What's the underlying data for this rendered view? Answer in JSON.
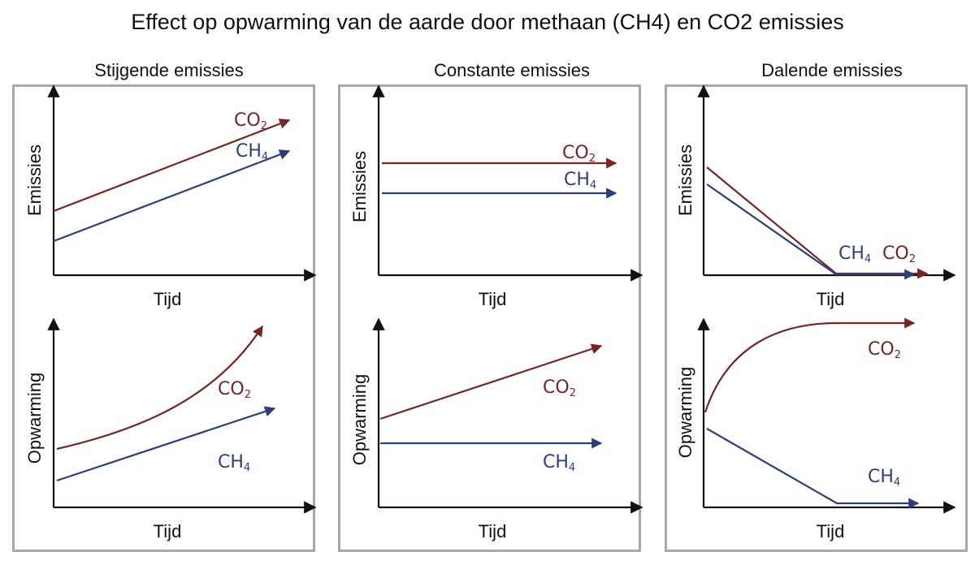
{
  "title": "Effect op opwarming van de aarde door methaan (CH4) en CO2 emissies",
  "colors": {
    "co2": "#7b2323",
    "ch4": "#2c3e7f",
    "panel_border": "#a7a7a7"
  },
  "labels": {
    "co2": "CO",
    "ch4": "CH",
    "co2_sub": "2",
    "ch4_sub": "4"
  },
  "columns": [
    {
      "title": "Stijgende emissies",
      "emissions": {
        "ylabel": "Emissies",
        "xlabel": "Tijd",
        "co2_trend": "stijgend",
        "ch4_trend": "stijgend"
      },
      "warming": {
        "ylabel": "Opwarming",
        "xlabel": "Tijd",
        "co2_trend": "versneld stijgend",
        "ch4_trend": "stijgend"
      }
    },
    {
      "title": "Constante emissies",
      "emissions": {
        "ylabel": "Emissies",
        "xlabel": "Tijd",
        "co2_trend": "constant",
        "ch4_trend": "constant"
      },
      "warming": {
        "ylabel": "Opwarming",
        "xlabel": "Tijd",
        "co2_trend": "stijgend",
        "ch4_trend": "constant"
      }
    },
    {
      "title": "Dalende emissies",
      "emissions": {
        "ylabel": "Emissies",
        "xlabel": "Tijd",
        "co2_trend": "dalend naar nul",
        "ch4_trend": "dalend naar nul"
      },
      "warming": {
        "ylabel": "Opwarming",
        "xlabel": "Tijd",
        "co2_trend": "stijgend en afvlakkend",
        "ch4_trend": "dalend"
      }
    }
  ]
}
